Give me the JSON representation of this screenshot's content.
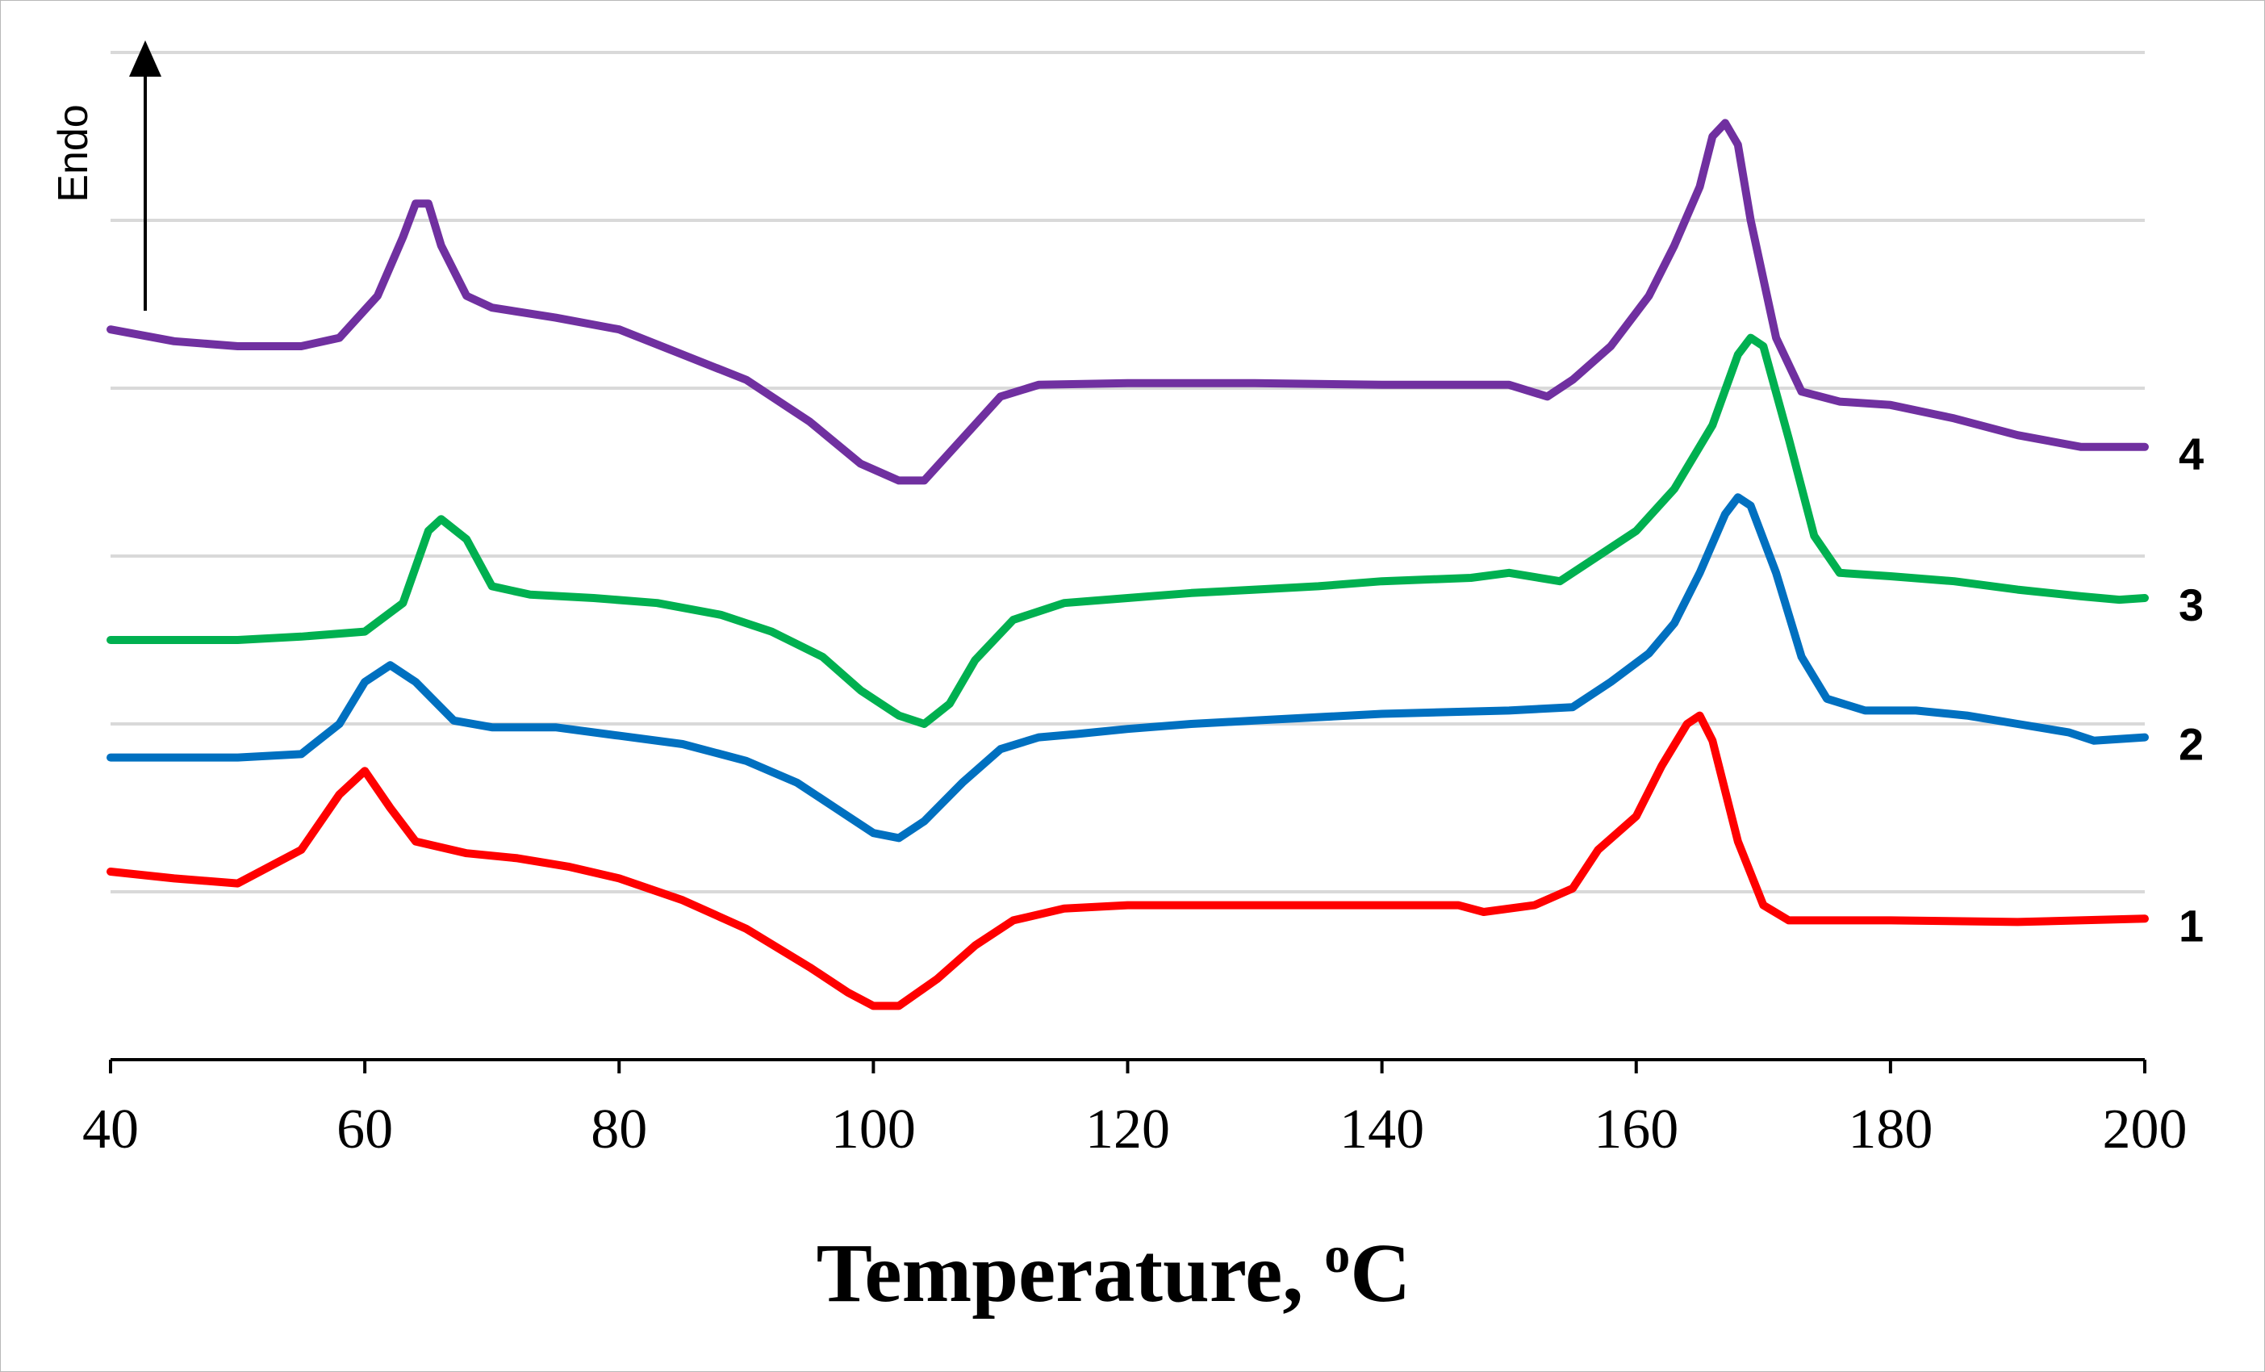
{
  "chart_data": {
    "type": "line",
    "title": "",
    "xlabel": "Temperature, ",
    "xlabel_super": "o",
    "xlabel_unit": "C",
    "ylabel": "Endo",
    "xlim": [
      40,
      200
    ],
    "ylim": [
      0,
      6
    ],
    "x_ticks": [
      40,
      60,
      80,
      100,
      120,
      140,
      160,
      180,
      200
    ],
    "x_tick_labels": [
      "40",
      "60",
      "80",
      "100",
      "120",
      "140",
      "160",
      "180",
      "200"
    ],
    "grid": "horizontal",
    "legend": "inline labels at right end of curves",
    "series": [
      {
        "name": "1",
        "color": "#ff0000",
        "points": [
          [
            40,
            1.12
          ],
          [
            45,
            1.08
          ],
          [
            50,
            1.05
          ],
          [
            55,
            1.25
          ],
          [
            58,
            1.58
          ],
          [
            60,
            1.72
          ],
          [
            62,
            1.5
          ],
          [
            64,
            1.3
          ],
          [
            68,
            1.23
          ],
          [
            72,
            1.2
          ],
          [
            76,
            1.15
          ],
          [
            80,
            1.08
          ],
          [
            85,
            0.95
          ],
          [
            90,
            0.78
          ],
          [
            95,
            0.55
          ],
          [
            98,
            0.4
          ],
          [
            100,
            0.32
          ],
          [
            102,
            0.32
          ],
          [
            105,
            0.48
          ],
          [
            108,
            0.68
          ],
          [
            111,
            0.83
          ],
          [
            115,
            0.9
          ],
          [
            120,
            0.92
          ],
          [
            130,
            0.92
          ],
          [
            140,
            0.92
          ],
          [
            146,
            0.92
          ],
          [
            148,
            0.88
          ],
          [
            152,
            0.92
          ],
          [
            155,
            1.02
          ],
          [
            157,
            1.25
          ],
          [
            160,
            1.45
          ],
          [
            162,
            1.75
          ],
          [
            164,
            2.0
          ],
          [
            165,
            2.05
          ],
          [
            166,
            1.9
          ],
          [
            168,
            1.3
          ],
          [
            170,
            0.92
          ],
          [
            172,
            0.83
          ],
          [
            180,
            0.83
          ],
          [
            190,
            0.82
          ],
          [
            200,
            0.84
          ]
        ]
      },
      {
        "name": "2",
        "color": "#0070c0",
        "points": [
          [
            40,
            1.8
          ],
          [
            45,
            1.8
          ],
          [
            50,
            1.8
          ],
          [
            55,
            1.82
          ],
          [
            58,
            2.0
          ],
          [
            60,
            2.25
          ],
          [
            62,
            2.35
          ],
          [
            64,
            2.25
          ],
          [
            67,
            2.02
          ],
          [
            70,
            1.98
          ],
          [
            75,
            1.98
          ],
          [
            80,
            1.93
          ],
          [
            85,
            1.88
          ],
          [
            90,
            1.78
          ],
          [
            94,
            1.65
          ],
          [
            97,
            1.5
          ],
          [
            100,
            1.35
          ],
          [
            102,
            1.32
          ],
          [
            104,
            1.42
          ],
          [
            107,
            1.65
          ],
          [
            110,
            1.85
          ],
          [
            113,
            1.92
          ],
          [
            116,
            1.94
          ],
          [
            120,
            1.97
          ],
          [
            125,
            2.0
          ],
          [
            130,
            2.02
          ],
          [
            140,
            2.06
          ],
          [
            150,
            2.08
          ],
          [
            155,
            2.1
          ],
          [
            158,
            2.25
          ],
          [
            161,
            2.42
          ],
          [
            163,
            2.6
          ],
          [
            165,
            2.9
          ],
          [
            167,
            3.25
          ],
          [
            168,
            3.35
          ],
          [
            169,
            3.3
          ],
          [
            171,
            2.9
          ],
          [
            173,
            2.4
          ],
          [
            175,
            2.15
          ],
          [
            178,
            2.08
          ],
          [
            182,
            2.08
          ],
          [
            186,
            2.05
          ],
          [
            190,
            2.0
          ],
          [
            194,
            1.95
          ],
          [
            196,
            1.9
          ],
          [
            200,
            1.92
          ]
        ]
      },
      {
        "name": "3",
        "color": "#00b050",
        "points": [
          [
            40,
            2.5
          ],
          [
            45,
            2.5
          ],
          [
            50,
            2.5
          ],
          [
            55,
            2.52
          ],
          [
            60,
            2.55
          ],
          [
            63,
            2.72
          ],
          [
            65,
            3.15
          ],
          [
            66,
            3.22
          ],
          [
            68,
            3.1
          ],
          [
            70,
            2.82
          ],
          [
            73,
            2.77
          ],
          [
            78,
            2.75
          ],
          [
            83,
            2.72
          ],
          [
            88,
            2.65
          ],
          [
            92,
            2.55
          ],
          [
            96,
            2.4
          ],
          [
            99,
            2.2
          ],
          [
            102,
            2.05
          ],
          [
            104,
            2.0
          ],
          [
            106,
            2.12
          ],
          [
            108,
            2.38
          ],
          [
            111,
            2.62
          ],
          [
            115,
            2.72
          ],
          [
            120,
            2.75
          ],
          [
            125,
            2.78
          ],
          [
            130,
            2.8
          ],
          [
            135,
            2.82
          ],
          [
            140,
            2.85
          ],
          [
            147,
            2.87
          ],
          [
            150,
            2.9
          ],
          [
            154,
            2.85
          ],
          [
            156,
            2.95
          ],
          [
            160,
            3.15
          ],
          [
            163,
            3.4
          ],
          [
            166,
            3.78
          ],
          [
            168,
            4.2
          ],
          [
            169,
            4.3
          ],
          [
            170,
            4.25
          ],
          [
            172,
            3.7
          ],
          [
            174,
            3.12
          ],
          [
            176,
            2.9
          ],
          [
            180,
            2.88
          ],
          [
            185,
            2.85
          ],
          [
            190,
            2.8
          ],
          [
            195,
            2.76
          ],
          [
            198,
            2.74
          ],
          [
            200,
            2.75
          ]
        ]
      },
      {
        "name": "4",
        "color": "#7030a0",
        "points": [
          [
            40,
            4.35
          ],
          [
            45,
            4.28
          ],
          [
            50,
            4.25
          ],
          [
            55,
            4.25
          ],
          [
            58,
            4.3
          ],
          [
            61,
            4.55
          ],
          [
            63,
            4.9
          ],
          [
            64,
            5.1
          ],
          [
            65,
            5.1
          ],
          [
            66,
            4.85
          ],
          [
            68,
            4.55
          ],
          [
            70,
            4.48
          ],
          [
            75,
            4.42
          ],
          [
            80,
            4.35
          ],
          [
            85,
            4.2
          ],
          [
            90,
            4.05
          ],
          [
            95,
            3.8
          ],
          [
            99,
            3.55
          ],
          [
            102,
            3.45
          ],
          [
            104,
            3.45
          ],
          [
            107,
            3.7
          ],
          [
            110,
            3.95
          ],
          [
            113,
            4.02
          ],
          [
            120,
            4.03
          ],
          [
            130,
            4.03
          ],
          [
            140,
            4.02
          ],
          [
            150,
            4.02
          ],
          [
            153,
            3.95
          ],
          [
            155,
            4.05
          ],
          [
            158,
            4.25
          ],
          [
            161,
            4.55
          ],
          [
            163,
            4.85
          ],
          [
            165,
            5.2
          ],
          [
            166,
            5.5
          ],
          [
            167,
            5.58
          ],
          [
            168,
            5.45
          ],
          [
            169,
            5.0
          ],
          [
            171,
            4.3
          ],
          [
            173,
            3.98
          ],
          [
            176,
            3.92
          ],
          [
            180,
            3.9
          ],
          [
            185,
            3.82
          ],
          [
            190,
            3.72
          ],
          [
            195,
            3.65
          ],
          [
            200,
            3.65
          ]
        ]
      }
    ]
  }
}
